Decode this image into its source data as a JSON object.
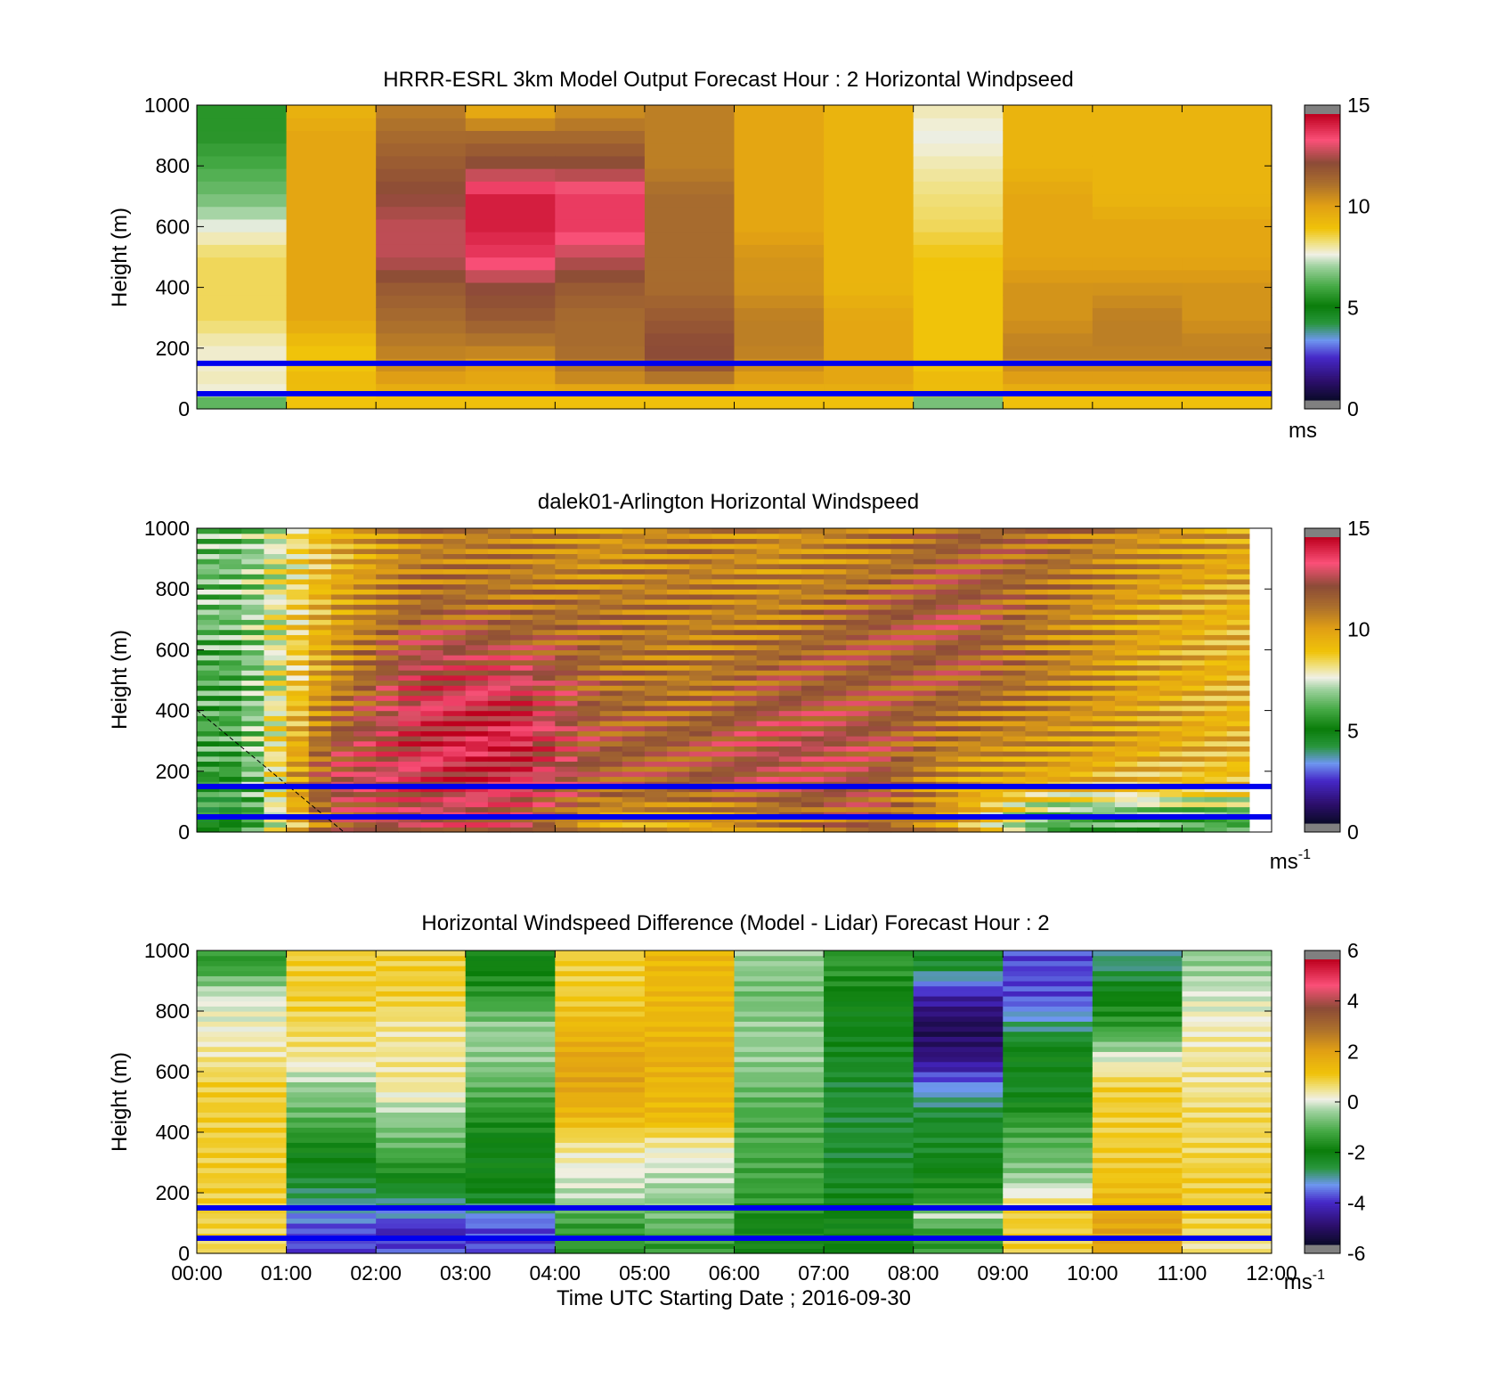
{
  "colorbar_unit_labels": [
    "ms",
    "ms-1",
    "ms-1"
  ],
  "chart_data": [
    {
      "type": "heatmap",
      "title": "HRRR-ESRL 3km Model Output   Forecast Hour : 2 Horizontal Windpseed",
      "ylabel": "Height (m)",
      "xlabel": "",
      "ylim": [
        0,
        1000
      ],
      "yticks": [
        0,
        200,
        400,
        600,
        800,
        1000
      ],
      "xlim": [
        0,
        12
      ],
      "x_tick_labels_shown": false,
      "colorbar": {
        "range": [
          0,
          15
        ],
        "ticks": [
          0,
          5,
          10,
          15
        ],
        "unit": "ms",
        "unit_superscript": ""
      },
      "reference_lines_m": [
        150,
        50
      ],
      "reference_line_color": "#0000ee",
      "time_columns_hours": [
        0,
        1,
        2,
        3,
        4,
        5,
        6,
        7,
        8,
        9,
        10,
        11
      ],
      "height_levels_m": [
        15,
        45,
        80,
        130,
        200,
        300,
        400,
        500,
        600,
        700,
        800,
        900,
        1000
      ],
      "values": [
        [
          6,
          9,
          9,
          9,
          9,
          9,
          9,
          9,
          6,
          9,
          9,
          9
        ],
        [
          7.5,
          9,
          9.5,
          9.5,
          9.5,
          9.5,
          9.5,
          9.5,
          9,
          9.5,
          9.5,
          9.5
        ],
        [
          8,
          9.5,
          10,
          10,
          10.5,
          10.5,
          10,
          10,
          9.5,
          10,
          10,
          10
        ],
        [
          7.8,
          9,
          10.5,
          10,
          11,
          12,
          10.5,
          10,
          9,
          10.5,
          10.5,
          10.5
        ],
        [
          7.8,
          9,
          11,
          11,
          11.5,
          12.5,
          11,
          10,
          9,
          11,
          11,
          11
        ],
        [
          8.5,
          10,
          11.5,
          12,
          11.5,
          12,
          11,
          10,
          9,
          10.5,
          11,
          10.5
        ],
        [
          8.5,
          10,
          12,
          12.5,
          12,
          11.5,
          10.5,
          9.5,
          9,
          10.5,
          10.5,
          10.5
        ],
        [
          8.5,
          10,
          13,
          14,
          13,
          11.5,
          10.5,
          9.5,
          9,
          10,
          10,
          10
        ],
        [
          7.6,
          10,
          13,
          14.5,
          14,
          11.5,
          10,
          9.5,
          8.5,
          10,
          10,
          10
        ],
        [
          6.5,
          10,
          12.5,
          14.5,
          14,
          11.5,
          10,
          9.5,
          8.3,
          10,
          9.5,
          9.5
        ],
        [
          6,
          10,
          12,
          12.5,
          12.5,
          11,
          10,
          9.5,
          8,
          9.5,
          9.5,
          9.5
        ],
        [
          5.5,
          10,
          11.5,
          11.5,
          11.5,
          11,
          10,
          9.5,
          7.6,
          9.5,
          9.5,
          9.5
        ],
        [
          5.5,
          9.5,
          11,
          9.5,
          10.5,
          11,
          10,
          9.5,
          8,
          9.5,
          9.5,
          9.5
        ]
      ]
    },
    {
      "type": "heatmap",
      "title": "dalek01-Arlington  Horizontal Windspeed",
      "ylabel": "Height (m)",
      "xlabel": "",
      "ylim": [
        0,
        1000
      ],
      "yticks": [
        0,
        200,
        400,
        600,
        800,
        1000
      ],
      "xlim": [
        0,
        12
      ],
      "x_tick_labels_shown": false,
      "colorbar": {
        "range": [
          0,
          15
        ],
        "ticks": [
          0,
          5,
          10,
          15
        ],
        "unit": "ms",
        "unit_superscript": "-1"
      },
      "reference_lines_m": [
        150,
        50
      ],
      "reference_line_color": "#0000ee",
      "data_end_hour": 11.85,
      "time_columns_hours": [
        0,
        1,
        2,
        3,
        4,
        5,
        6,
        7,
        8,
        9,
        10,
        11
      ],
      "height_levels_m": [
        50,
        150,
        300,
        500,
        700,
        900
      ],
      "values": [
        [
          5,
          12,
          13,
          13,
          10,
          10,
          11,
          12,
          10,
          6,
          6,
          6
        ],
        [
          5.5,
          13,
          13.5,
          14,
          12,
          12,
          12.5,
          12.5,
          10,
          9.5,
          9,
          9
        ],
        [
          6,
          12,
          14,
          14.5,
          12,
          12,
          13,
          12.5,
          11,
          10.5,
          10,
          9.5
        ],
        [
          6,
          10.5,
          13.5,
          13.5,
          11.5,
          11,
          12,
          12,
          12,
          11,
          10,
          9.5
        ],
        [
          6.5,
          10,
          12,
          11.5,
          11.5,
          11,
          11,
          12,
          12.5,
          11,
          10,
          9.5
        ],
        [
          6.5,
          9.5,
          11,
          11,
          10.5,
          11,
          10.5,
          11,
          12,
          11.5,
          10.5,
          10
        ]
      ]
    },
    {
      "type": "heatmap",
      "title": "Horizontal Windspeed Difference (Model - Lidar) Forecast Hour : 2",
      "ylabel": "Height (m)",
      "xlabel": "Time UTC  Starting Date ; 2016-09-30",
      "ylim": [
        0,
        1000
      ],
      "yticks": [
        0,
        200,
        400,
        600,
        800,
        1000
      ],
      "xlim": [
        0,
        12
      ],
      "x_tick_labels": [
        "00:00",
        "01:00",
        "02:00",
        "03:00",
        "04:00",
        "05:00",
        "06:00",
        "07:00",
        "08:00",
        "09:00",
        "10:00",
        "11:00",
        "12:00"
      ],
      "x_tick_labels_shown": true,
      "colorbar": {
        "range": [
          -6,
          6
        ],
        "ticks": [
          6,
          4,
          2,
          0,
          -2,
          -4,
          -6
        ],
        "unit": "ms",
        "unit_superscript": "-1"
      },
      "reference_lines_m": [
        150,
        50
      ],
      "reference_line_color": "#0000ee",
      "time_columns_hours": [
        0,
        1,
        2,
        3,
        4,
        5,
        6,
        7,
        8,
        9,
        10,
        11
      ],
      "height_levels_m": [
        25,
        75,
        125,
        175,
        250,
        350,
        450,
        550,
        650,
        750,
        850,
        950
      ],
      "values": [
        [
          0.8,
          -4,
          -4,
          -4,
          -1.5,
          -1.5,
          -2,
          -2,
          -1.5,
          1,
          2,
          0.5
        ],
        [
          0.9,
          -4,
          -4.5,
          -4,
          -1.5,
          -1,
          -2,
          -2,
          -1.5,
          1,
          2,
          0.8
        ],
        [
          0.9,
          -3.5,
          -3.5,
          -3.5,
          -1.2,
          -0.8,
          -1.8,
          -2,
          -0.3,
          1,
          2,
          1
        ],
        [
          1,
          -3,
          -3,
          -2.5,
          -0.3,
          -0.5,
          -1.5,
          -2.3,
          -1.5,
          0.5,
          1.5,
          1
        ],
        [
          1,
          -2.5,
          -2,
          -2,
          0,
          -0.2,
          -1.3,
          -2.5,
          -2,
          -0.5,
          1.2,
          1
        ],
        [
          1,
          -2,
          -1,
          -2.2,
          0.5,
          0.3,
          -1.2,
          -2.6,
          -2.5,
          -1,
          1,
          0.8
        ],
        [
          1,
          -1,
          -0.5,
          -1.7,
          1.5,
          1.5,
          -1.2,
          -2.6,
          -2.5,
          -1.5,
          1,
          0.8
        ],
        [
          1,
          -0.5,
          0.5,
          -1,
          2,
          1.5,
          -0.8,
          -2.6,
          -3.5,
          -2.5,
          1,
          0.5
        ],
        [
          0.5,
          0.5,
          0.5,
          -0.5,
          2,
          1.8,
          -0.5,
          -2.4,
          -5,
          -2,
          0,
          0.5
        ],
        [
          0.2,
          0.8,
          0.5,
          -0.5,
          1.5,
          1.5,
          -0.5,
          -2.2,
          -5.5,
          -3,
          -1.5,
          0.3
        ],
        [
          0,
          1,
          1,
          -1.5,
          1,
          1.5,
          -0.8,
          -2,
          -4.5,
          -4,
          -2,
          0
        ],
        [
          -1.5,
          1,
          1,
          -2,
          1,
          1.5,
          -0.5,
          -1.5,
          -2.5,
          -4,
          -3,
          -0.5
        ]
      ]
    }
  ]
}
